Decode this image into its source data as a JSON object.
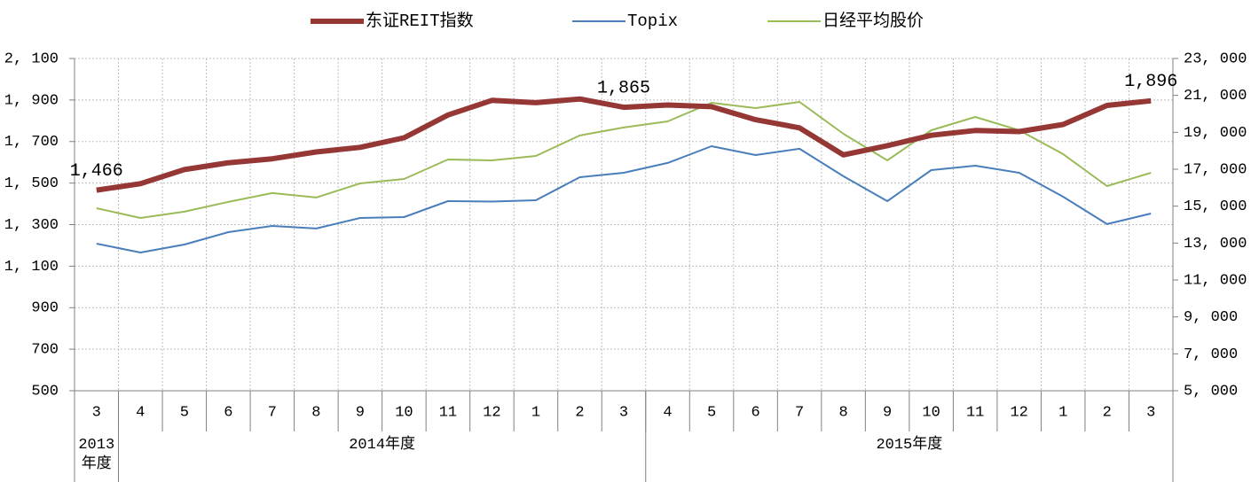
{
  "chart_data": {
    "type": "line",
    "categories": [
      "3",
      "4",
      "5",
      "6",
      "7",
      "8",
      "9",
      "10",
      "11",
      "12",
      "1",
      "2",
      "3",
      "4",
      "5",
      "6",
      "7",
      "8",
      "9",
      "10",
      "11",
      "12",
      "1",
      "2",
      "3"
    ],
    "groups": [
      {
        "label": "2013年度",
        "span": 1
      },
      {
        "label": "2014年度",
        "span": 12
      },
      {
        "label": "2015年度",
        "span": 12
      }
    ],
    "series": [
      {
        "name": "东证REIT指数",
        "color": "#953735",
        "width": 6,
        "values": [
          1466,
          1497,
          1565,
          1598,
          1617,
          1650,
          1672,
          1718,
          1828,
          1898,
          1887,
          1905,
          1865,
          1876,
          1868,
          1805,
          1766,
          1636,
          1680,
          1730,
          1753,
          1748,
          1782,
          1874,
          1896
        ],
        "value_labels": [
          "1,466",
          null,
          null,
          null,
          null,
          null,
          null,
          null,
          null,
          null,
          null,
          null,
          "1,865",
          null,
          null,
          null,
          null,
          null,
          null,
          null,
          null,
          null,
          null,
          null,
          "1,896"
        ]
      },
      {
        "name": "Topix",
        "color": "#4a7ebb",
        "width": 2,
        "axis": "y2",
        "values": [
          12970,
          12490,
          12920,
          13590,
          13930,
          13790,
          14360,
          14410,
          15270,
          15250,
          15320,
          16570,
          16810,
          17340,
          18250,
          17770,
          18110,
          16620,
          15270,
          16950,
          17190,
          16810,
          15510,
          14030,
          14600
        ]
      },
      {
        "name": "日经平均股价",
        "color": "#9bbb59",
        "width": 2,
        "axis": "y2",
        "values": [
          14890,
          14360,
          14700,
          15230,
          15710,
          15470,
          16230,
          16470,
          17530,
          17480,
          17720,
          18830,
          19260,
          19590,
          20600,
          20310,
          20650,
          18920,
          17480,
          19110,
          19830,
          19110,
          17820,
          16090,
          16810
        ]
      }
    ],
    "ylim": [
      500,
      2100
    ],
    "yticks": [
      500,
      700,
      900,
      {
        "value": 1100,
        "label": "1, 100"
      },
      {
        "value": 1300,
        "label": "1, 300"
      },
      {
        "value": 1500,
        "label": "1, 500"
      },
      {
        "value": 1700,
        "label": "1, 700"
      },
      {
        "value": 1900,
        "label": "1, 900"
      },
      {
        "value": 2100,
        "label": "2, 100"
      }
    ],
    "y2lim": [
      5000,
      23000
    ],
    "y2ticks": [
      {
        "value": 5000,
        "label": "5, 000"
      },
      {
        "value": 7000,
        "label": "7, 000"
      },
      {
        "value": 9000,
        "label": "9, 000"
      },
      {
        "value": 11000,
        "label": "11, 000"
      },
      {
        "value": 13000,
        "label": "13, 000"
      },
      {
        "value": 15000,
        "label": "15, 000"
      },
      {
        "value": 17000,
        "label": "17, 000"
      },
      {
        "value": 19000,
        "label": "19, 000"
      },
      {
        "value": 21000,
        "label": "21, 000"
      },
      {
        "value": 23000,
        "label": "23, 000"
      }
    ],
    "grid": true,
    "legend": "top"
  }
}
